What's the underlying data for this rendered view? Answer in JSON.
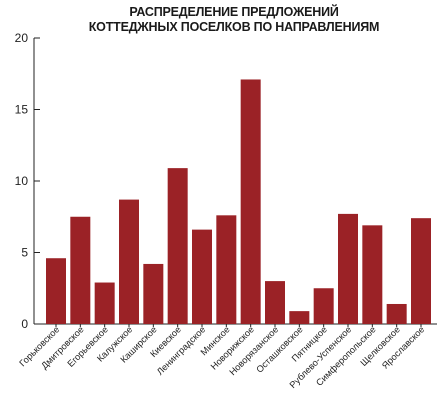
{
  "title_line1": "РАСПРЕДЕЛЕНИЕ ПРЕДЛОЖЕНИЙ",
  "title_line2": "КОТТЕДЖНЫХ ПОСЕЛКОВ ПО НАПРАВЛЕНИЯМ",
  "bar_color": "#9b2226",
  "chart_data": {
    "type": "bar",
    "title": "РАСПРЕДЕЛЕНИЕ ПРЕДЛОЖЕНИЙ КОТТЕДЖНЫХ ПОСЕЛКОВ ПО НАПРАВЛЕНИЯМ",
    "xlabel": "",
    "ylabel": "",
    "ylim": [
      0,
      20
    ],
    "yticks": [
      0,
      5,
      10,
      15,
      20
    ],
    "grid": false,
    "categories": [
      "Горьковское",
      "Дмитровское",
      "Егорьевское",
      "Калужское",
      "Каширское",
      "Киевское",
      "Ленинградское",
      "Минское",
      "Новорижское",
      "Новорязанское",
      "Осташковское",
      "Пятницкое",
      "Рублево-Успенское",
      "Симферопольское",
      "Щелковское",
      "Ярославское"
    ],
    "values": [
      4.6,
      7.5,
      2.9,
      8.7,
      4.2,
      10.9,
      6.6,
      7.6,
      17.1,
      3.0,
      0.9,
      2.5,
      7.7,
      6.9,
      1.4,
      7.4
    ]
  }
}
